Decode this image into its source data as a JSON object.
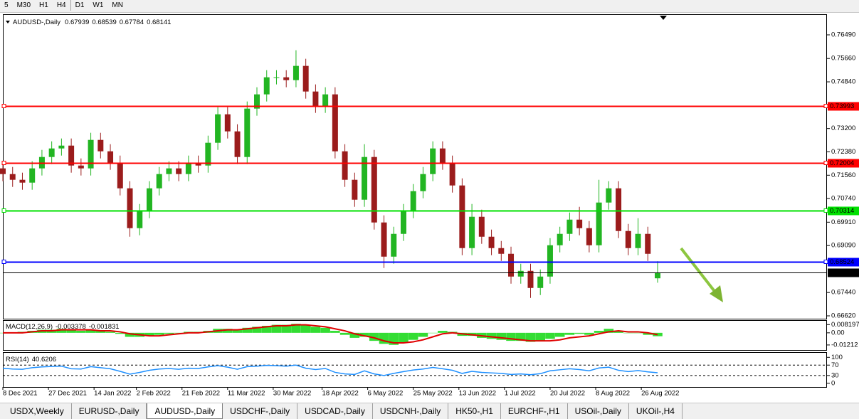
{
  "toolbar": {
    "timeframes": [
      "5",
      "M30",
      "H1",
      "H4",
      "D1",
      "W1",
      "MN"
    ]
  },
  "chart_data": [
    {
      "type": "candlestick",
      "title": "AUDUSD-,Daily",
      "x": [
        0,
        3,
        6,
        9,
        12,
        15,
        18,
        21,
        24,
        27,
        30,
        33,
        36,
        39,
        42,
        45,
        48,
        51,
        54,
        57,
        60,
        63,
        66,
        69,
        72,
        75,
        78,
        81,
        84,
        87,
        90,
        93,
        96,
        99,
        102,
        105,
        108,
        111,
        114,
        117,
        120,
        123,
        126,
        129,
        132,
        135,
        138,
        141,
        144,
        147,
        150,
        153,
        156,
        159,
        162,
        165,
        168,
        171,
        174,
        177,
        180,
        183,
        186,
        189,
        192,
        195,
        198,
        201
      ],
      "open": [
        0.718,
        0.716,
        0.714,
        0.713,
        0.718,
        0.722,
        0.725,
        0.726,
        0.719,
        0.718,
        0.728,
        0.724,
        0.72,
        0.711,
        0.697,
        0.703,
        0.711,
        0.716,
        0.718,
        0.716,
        0.72,
        0.719,
        0.727,
        0.737,
        0.731,
        0.722,
        0.739,
        0.744,
        0.75,
        0.75,
        0.749,
        0.754,
        0.745,
        0.74,
        0.744,
        0.724,
        0.714,
        0.707,
        0.722,
        0.699,
        0.687,
        0.695,
        0.703,
        0.71,
        0.716,
        0.725,
        0.72,
        0.712,
        0.69,
        0.701,
        0.694,
        0.69,
        0.688,
        0.68,
        0.682,
        0.676,
        0.68,
        0.691,
        0.695,
        0.7,
        0.697,
        0.691,
        0.706,
        0.711,
        0.696,
        0.69,
        0.695,
        0.67939
      ],
      "high": [
        0.7205,
        0.7185,
        0.7165,
        0.7205,
        0.7245,
        0.7275,
        0.7285,
        0.7285,
        0.7215,
        0.7305,
        0.7305,
        0.7265,
        0.7225,
        0.7135,
        0.7055,
        0.7135,
        0.7185,
        0.7205,
        0.7205,
        0.7225,
        0.7225,
        0.7295,
        0.7395,
        0.7395,
        0.7335,
        0.7415,
        0.7465,
        0.7525,
        0.7525,
        0.7525,
        0.7595,
        0.7565,
        0.7475,
        0.7465,
        0.7465,
        0.7265,
        0.7165,
        0.7265,
        0.7245,
        0.7015,
        0.6975,
        0.7055,
        0.7125,
        0.7185,
        0.7275,
        0.7275,
        0.7225,
        0.7145,
        0.7055,
        0.7035,
        0.6965,
        0.6925,
        0.6905,
        0.6845,
        0.6845,
        0.6825,
        0.6935,
        0.6975,
        0.7025,
        0.7045,
        0.6995,
        0.714,
        0.7135,
        0.7135,
        0.6985,
        0.7005,
        0.6975,
        0.68539
      ],
      "low": [
        0.7135,
        0.7115,
        0.7105,
        0.7105,
        0.7155,
        0.7195,
        0.7225,
        0.7165,
        0.7155,
        0.7155,
        0.7215,
        0.7175,
        0.7085,
        0.694,
        0.6945,
        0.7005,
        0.7085,
        0.7135,
        0.7135,
        0.7135,
        0.7165,
        0.7165,
        0.7245,
        0.7285,
        0.7195,
        0.7195,
        0.7365,
        0.7415,
        0.7475,
        0.7465,
        0.7465,
        0.7425,
        0.7375,
        0.7375,
        0.7215,
        0.7115,
        0.7045,
        0.7045,
        0.6965,
        0.683,
        0.6845,
        0.6925,
        0.7005,
        0.7075,
        0.7135,
        0.7175,
        0.7095,
        0.6875,
        0.6875,
        0.6915,
        0.6875,
        0.6855,
        0.6775,
        0.6775,
        0.6725,
        0.6735,
        0.6775,
        0.6885,
        0.6925,
        0.6945,
        0.6885,
        0.6885,
        0.7035,
        0.6935,
        0.6875,
        0.6875,
        0.6855,
        0.67784
      ],
      "close": [
        0.716,
        0.714,
        0.713,
        0.718,
        0.722,
        0.725,
        0.726,
        0.719,
        0.718,
        0.728,
        0.724,
        0.72,
        0.711,
        0.697,
        0.703,
        0.711,
        0.716,
        0.718,
        0.716,
        0.72,
        0.719,
        0.727,
        0.737,
        0.731,
        0.722,
        0.739,
        0.744,
        0.75,
        0.75,
        0.749,
        0.754,
        0.745,
        0.74,
        0.744,
        0.724,
        0.714,
        0.707,
        0.722,
        0.699,
        0.687,
        0.695,
        0.703,
        0.71,
        0.716,
        0.725,
        0.72,
        0.712,
        0.69,
        0.701,
        0.694,
        0.69,
        0.688,
        0.68,
        0.682,
        0.676,
        0.68,
        0.691,
        0.695,
        0.7,
        0.697,
        0.691,
        0.706,
        0.711,
        0.696,
        0.69,
        0.695,
        0.688,
        0.68141
      ],
      "up_color": "#22b522",
      "down_color": "#9b1c1c",
      "price_line_color": "#000000",
      "xlim": [
        0,
        253
      ],
      "ylim": [
        0.6652,
        0.77215
      ],
      "yticks": [
        {
          "value": 0.7649,
          "label": "0.76490"
        },
        {
          "value": 0.7566,
          "label": "0.75660"
        },
        {
          "value": 0.7484,
          "label": "0.74840"
        },
        {
          "value": 0.732,
          "label": "0.73200"
        },
        {
          "value": 0.7238,
          "label": "0.72380"
        },
        {
          "value": 0.7156,
          "label": "0.71560"
        },
        {
          "value": 0.7074,
          "label": "0.70740"
        },
        {
          "value": 0.6991,
          "label": "0.69910"
        },
        {
          "value": 0.6909,
          "label": "0.69090"
        },
        {
          "value": 0.6744,
          "label": "0.67440"
        },
        {
          "value": 0.6662,
          "label": "0.66620"
        }
      ],
      "xticks": [
        {
          "value": 0,
          "label": "8 Dec 2021"
        },
        {
          "value": 14,
          "label": "27 Dec 2021"
        },
        {
          "value": 28,
          "label": "14 Jan 2022"
        },
        {
          "value": 41,
          "label": "2 Feb 2022"
        },
        {
          "value": 55,
          "label": "21 Feb 2022"
        },
        {
          "value": 69,
          "label": "11 Mar 2022"
        },
        {
          "value": 83,
          "label": "30 Mar 2022"
        },
        {
          "value": 98,
          "label": "18 Apr 2022"
        },
        {
          "value": 112,
          "label": "6 May 2022"
        },
        {
          "value": 126,
          "label": "25 May 2022"
        },
        {
          "value": 140,
          "label": "13 Jun 2022"
        },
        {
          "value": 154,
          "label": "1 Jul 2022"
        },
        {
          "value": 168,
          "label": "20 Jul 2022"
        },
        {
          "value": 182,
          "label": "8 Aug 2022"
        },
        {
          "value": 196,
          "label": "26 Aug 2022"
        }
      ],
      "levels": [
        {
          "value": 0.73993,
          "color": "#ff0000",
          "text_color": "#ffffff"
        },
        {
          "value": 0.72004,
          "color": "#ff0000",
          "text_color": "#ffffff"
        },
        {
          "value": 0.70314,
          "color": "#00e000",
          "text_color": "#000000"
        },
        {
          "value": 0.68524,
          "color": "#0000ff",
          "text_color": "#ffffff"
        }
      ]
    },
    {
      "type": "macd",
      "title": "MACD(12,26,9)",
      "series": [
        {
          "kind": "histogram",
          "color": "#33dd33",
          "values": [
            0.0,
            0.0,
            0.001,
            0.002,
            0.003,
            0.003,
            0.004,
            0.003,
            0.002,
            0.003,
            0.002,
            0.001,
            -0.001,
            -0.004,
            -0.004,
            -0.003,
            -0.002,
            -0.001,
            0.0,
            0.001,
            0.001,
            0.002,
            0.004,
            0.004,
            0.003,
            0.005,
            0.006,
            0.007,
            0.008,
            0.008,
            0.009,
            0.008,
            0.006,
            0.005,
            0.002,
            -0.002,
            -0.005,
            -0.004,
            -0.008,
            -0.011,
            -0.012,
            -0.01,
            -0.007,
            -0.004,
            0.0,
            0.002,
            0.001,
            -0.003,
            -0.003,
            -0.005,
            -0.006,
            -0.007,
            -0.008,
            -0.008,
            -0.009,
            -0.008,
            -0.006,
            -0.004,
            -0.002,
            -0.001,
            -0.002,
            0.002,
            0.004,
            0.002,
            0.0,
            0.0,
            -0.002,
            -0.003378
          ]
        },
        {
          "kind": "line",
          "color": "#e00000",
          "values": [
            0.0,
            0.0,
            0.0,
            0.001,
            0.002,
            0.002,
            0.003,
            0.003,
            0.003,
            0.003,
            0.002,
            0.002,
            0.001,
            -0.001,
            -0.002,
            -0.003,
            -0.003,
            -0.002,
            -0.001,
            0.0,
            0.0,
            0.001,
            0.002,
            0.003,
            0.003,
            0.004,
            0.005,
            0.006,
            0.007,
            0.007,
            0.008,
            0.008,
            0.007,
            0.006,
            0.004,
            0.002,
            -0.001,
            -0.003,
            -0.005,
            -0.008,
            -0.01,
            -0.01,
            -0.009,
            -0.007,
            -0.004,
            -0.001,
            0.0,
            -0.001,
            -0.002,
            -0.003,
            -0.004,
            -0.005,
            -0.006,
            -0.007,
            -0.008,
            -0.008,
            -0.008,
            -0.007,
            -0.005,
            -0.004,
            -0.003,
            -0.001,
            0.001,
            0.002,
            0.001,
            0.001,
            0.0,
            -0.001831
          ]
        }
      ],
      "ylim": [
        -0.01714,
        0.01267
      ],
      "yticks": [
        0.008197,
        {
          "value": 0,
          "label": "0.00"
        },
        -0.01212
      ]
    },
    {
      "type": "line",
      "title": "RSI(14)",
      "series": [
        {
          "color": "#1e90ff",
          "values": [
            58,
            55,
            54,
            60,
            63,
            65,
            66,
            56,
            55,
            64,
            60,
            56,
            46,
            35,
            42,
            50,
            55,
            57,
            54,
            58,
            57,
            63,
            68,
            62,
            54,
            64,
            66,
            69,
            68,
            66,
            70,
            58,
            53,
            57,
            42,
            36,
            34,
            48,
            36,
            30,
            38,
            45,
            51,
            55,
            61,
            56,
            50,
            38,
            46,
            42,
            40,
            38,
            34,
            36,
            33,
            37,
            48,
            52,
            56,
            53,
            48,
            59,
            62,
            50,
            45,
            49,
            44,
            40.6206
          ]
        }
      ],
      "ylim": [
        -14.3,
        120
      ],
      "yticks": [
        100,
        70,
        30,
        0
      ],
      "levels": [
        70,
        30
      ]
    }
  ],
  "tabs": [
    "USDX,Weekly",
    "EURUSD-,Daily",
    "AUDUSD-,Daily",
    "USDCHF-,Daily",
    "USDCAD-,Daily",
    "USDCNH-,Daily",
    "HK50-,H1",
    "EURCHF-,H1",
    "USOil-,Daily",
    "UKOil-,H4"
  ],
  "active_tab": 2
}
